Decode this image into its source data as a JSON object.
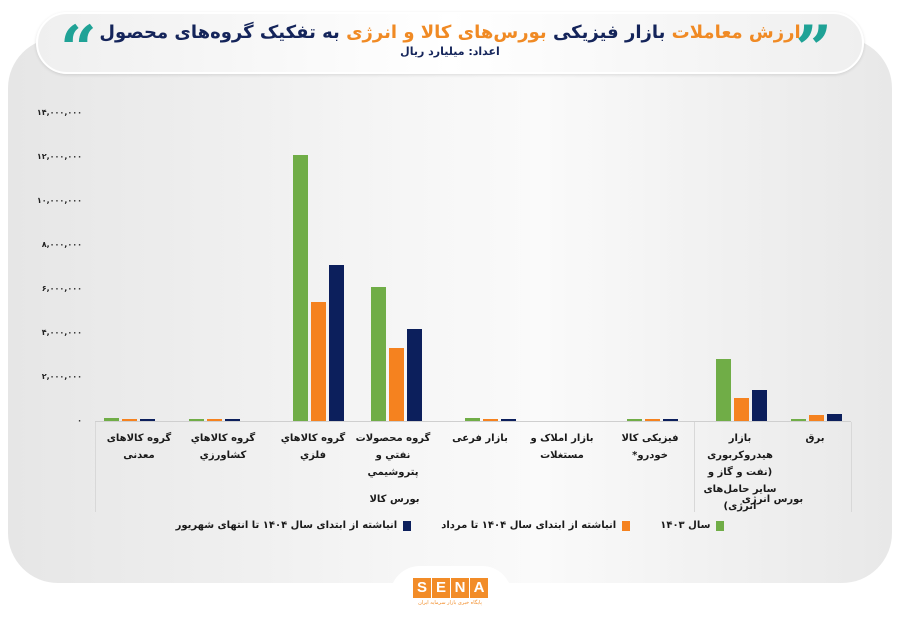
{
  "header": {
    "title_part1": "ارزش معاملات",
    "title_part2": "بازار فیزیکی",
    "title_part3": "بورس‌های کالا و انرژی",
    "title_part4": "به تفکیک گروه‌های محصول",
    "subtitle": "اعداد: میلیارد ریال",
    "quote_left": "“",
    "quote_right": "”"
  },
  "colors": {
    "series_1403": "#70ad47",
    "series_1404_mordad": "#f5821f",
    "series_1404_shahrivar": "#0c1f5c",
    "title_orange": "#f08a24",
    "title_navy": "#14245a",
    "quote_teal": "#1fa296"
  },
  "yaxis": {
    "ticks": [
      "۱۴,۰۰۰,۰۰۰",
      "۱۲,۰۰۰,۰۰۰",
      "۱۰,۰۰۰,۰۰۰",
      "۸,۰۰۰,۰۰۰",
      "۶,۰۰۰,۰۰۰",
      "۴,۰۰۰,۰۰۰",
      "۲,۰۰۰,۰۰۰",
      "۰"
    ]
  },
  "groups": {
    "commodity": "بورس کالا",
    "energy": "بورس انرژی"
  },
  "categories": {
    "c0": "گروه کالاهای معدنی",
    "c1": "گروه کالاهاي کشاورزي",
    "c2": "گروه کالاهاي فلزي",
    "c3": "گروه محصولات نفتي و پتروشيمي",
    "c4": "بازار فرعی",
    "c5": "بازار املاک و مستغلات",
    "c6": "فیزیکی کالا خودرو*",
    "c7": "بازار هیدروکربوری (نفت و گاز و سایر حامل‌های انرژی)",
    "c8": "برق"
  },
  "legend": {
    "s1": "سال ۱۴۰۳",
    "s2": "انباشته از ابتدای سال ۱۴۰۴ تا مرداد",
    "s3": "انباشته از ابتدای سال ۱۴۰۴ تا انتهای شهریور"
  },
  "logo": {
    "letters": [
      "S",
      "E",
      "N",
      "A"
    ],
    "tagline": "پایگاه خبری بازار سرمایه ایران"
  },
  "chart_data": {
    "type": "bar",
    "title": "ارزش معاملات بازار فیزیکی بورس‌های کالا و انرژی به تفکیک گروه‌های محصول",
    "subtitle": "اعداد: میلیارد ریال",
    "xlabel": "",
    "ylabel": "میلیارد ریال",
    "ylim": [
      0,
      14000000
    ],
    "yticks": [
      0,
      2000000,
      4000000,
      6000000,
      8000000,
      10000000,
      12000000,
      14000000
    ],
    "grid": false,
    "legend_position": "bottom",
    "category_groups": [
      {
        "name": "بورس کالا",
        "categories": [
          "گروه کالاهای معدنی",
          "گروه کالاهاي کشاورزي",
          "گروه کالاهاي فلزي",
          "گروه محصولات نفتي و پتروشيمي",
          "بازار فرعی",
          "بازار املاک و مستغلات",
          "فیزیکی کالا خودرو*"
        ]
      },
      {
        "name": "بورس انرژی",
        "categories": [
          "بازار هیدروکربوری (نفت و گاز و سایر حامل‌های انرژی)",
          "برق"
        ]
      }
    ],
    "categories": [
      "گروه کالاهای معدنی",
      "گروه کالاهاي کشاورزي",
      "گروه کالاهاي فلزي",
      "گروه محصولات نفتي و پتروشيمي",
      "بازار فرعی",
      "بازار املاک و مستغلات",
      "فیزیکی کالا خودرو*",
      "بازار هیدروکربوری (نفت و گاز و سایر حامل‌های انرژی)",
      "برق"
    ],
    "series": [
      {
        "name": "سال ۱۴۰۳",
        "color": "#70ad47",
        "values": [
          150000,
          30000,
          12100000,
          6100000,
          150000,
          0,
          30000,
          2800000,
          40000
        ]
      },
      {
        "name": "انباشته از ابتدای سال ۱۴۰۴ تا مرداد",
        "color": "#f5821f",
        "values": [
          40000,
          30000,
          5400000,
          3300000,
          70000,
          0,
          30000,
          1050000,
          250000
        ]
      },
      {
        "name": "انباشته از ابتدای سال ۱۴۰۴ تا انتهای شهریور",
        "color": "#0c1f5c",
        "values": [
          50000,
          40000,
          7100000,
          4200000,
          100000,
          0,
          40000,
          1400000,
          300000
        ]
      }
    ]
  }
}
